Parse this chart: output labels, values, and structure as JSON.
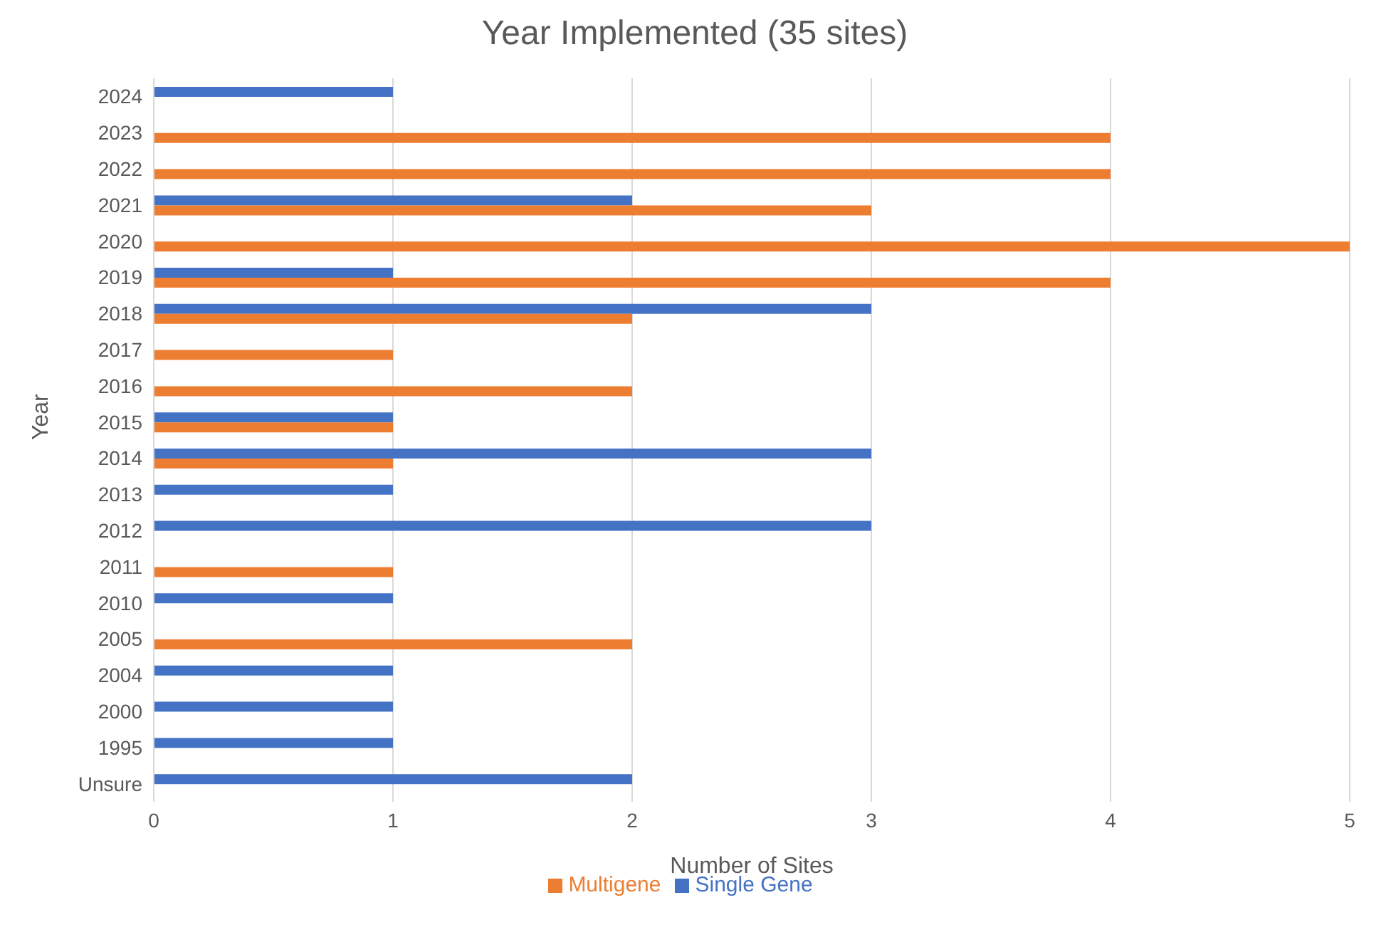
{
  "chart_data": {
    "type": "bar",
    "orientation": "horizontal",
    "title": "Year Implemented (35 sites)",
    "xlabel": "Number of Sites",
    "ylabel": "Year",
    "categories": [
      "2024",
      "2023",
      "2022",
      "2021",
      "2020",
      "2019",
      "2018",
      "2017",
      "2016",
      "2015",
      "2014",
      "2013",
      "2012",
      "2011",
      "2010",
      "2005",
      "2004",
      "2000",
      "1995",
      "Unsure"
    ],
    "series": [
      {
        "name": "Single Gene",
        "color": "#4472c4",
        "values": [
          1,
          null,
          null,
          2,
          null,
          1,
          3,
          null,
          null,
          1,
          3,
          1,
          3,
          null,
          1,
          null,
          1,
          1,
          1,
          2
        ]
      },
      {
        "name": "Multigene",
        "color": "#ed7d31",
        "values": [
          null,
          4,
          4,
          3,
          5,
          4,
          2,
          1,
          2,
          1,
          1,
          null,
          null,
          1,
          null,
          2,
          null,
          null,
          null,
          null
        ]
      }
    ],
    "xlim": [
      0,
      5
    ],
    "xticks": [
      0,
      1,
      2,
      3,
      4,
      5
    ],
    "grid": "x",
    "legend": "bottom"
  }
}
